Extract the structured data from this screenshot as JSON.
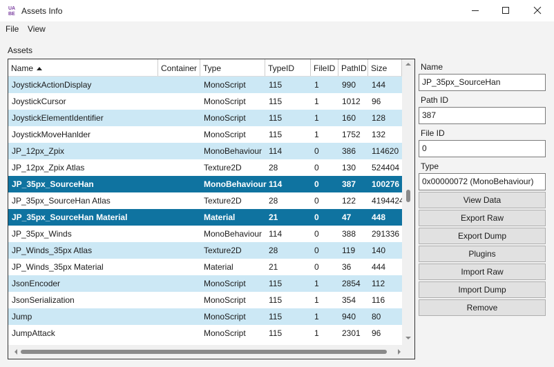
{
  "window": {
    "title": "Assets Info"
  },
  "menu": [
    "File",
    "View"
  ],
  "section_label": "Assets",
  "table": {
    "columns": [
      "Name",
      "Container",
      "Type",
      "TypeID",
      "FileID",
      "PathID",
      "Size"
    ],
    "selected_rows": [
      6,
      8
    ],
    "rows": [
      [
        "JoystickActionDisplay",
        null,
        "MonoScript",
        115,
        1,
        990,
        144
      ],
      [
        "JoystickCursor",
        null,
        "MonoScript",
        115,
        1,
        1012,
        96
      ],
      [
        "JoystickElementIdentifier",
        null,
        "MonoScript",
        115,
        1,
        160,
        128
      ],
      [
        "JoystickMoveHanlder",
        null,
        "MonoScript",
        115,
        1,
        1752,
        132
      ],
      [
        "JP_12px_Zpix",
        null,
        "MonoBehaviour",
        114,
        0,
        386,
        114620
      ],
      [
        "JP_12px_Zpix Atlas",
        null,
        "Texture2D",
        28,
        0,
        130,
        524404
      ],
      [
        "JP_35px_SourceHan",
        null,
        "MonoBehaviour",
        114,
        0,
        387,
        100276
      ],
      [
        "JP_35px_SourceHan Atlas",
        null,
        "Texture2D",
        28,
        0,
        122,
        4194424
      ],
      [
        "JP_35px_SourceHan Material",
        null,
        "Material",
        21,
        0,
        47,
        448
      ],
      [
        "JP_35px_Winds",
        null,
        "MonoBehaviour",
        114,
        0,
        388,
        291336
      ],
      [
        "JP_Winds_35px Atlas",
        null,
        "Texture2D",
        28,
        0,
        119,
        140
      ],
      [
        "JP_Winds_35px Material",
        null,
        "Material",
        21,
        0,
        36,
        444
      ],
      [
        "JsonEncoder",
        null,
        "MonoScript",
        115,
        1,
        2854,
        112
      ],
      [
        "JsonSerialization",
        null,
        "MonoScript",
        115,
        1,
        354,
        116
      ],
      [
        "Jump",
        null,
        "MonoScript",
        115,
        1,
        940,
        80
      ],
      [
        "JumpAttack",
        null,
        "MonoScript",
        115,
        1,
        2301,
        96
      ]
    ]
  },
  "fields": [
    {
      "label": "Name",
      "value": "JP_35px_SourceHan"
    },
    {
      "label": "Path ID",
      "value": "387"
    },
    {
      "label": "File ID",
      "value": "0"
    },
    {
      "label": "Type",
      "value": "0x00000072 (MonoBehaviour)"
    }
  ],
  "buttons": [
    "View Data",
    "Export Raw",
    "Export Dump",
    "Plugins",
    "Import Raw",
    "Import Dump",
    "Remove"
  ]
}
